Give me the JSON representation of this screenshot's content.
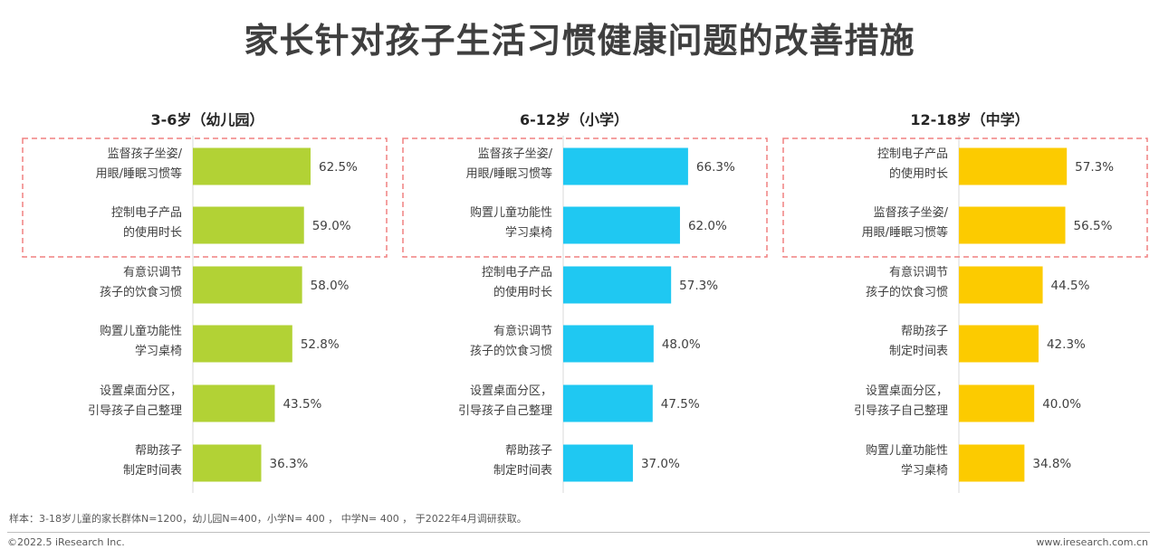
{
  "title": "家长针对孩子生活习惯健康问题的改善措施",
  "note": "样本：3-18岁儿童的家长群体N=1200，幼儿园N=400，小学N= 400 ， 中学N= 400 ， 于2022年4月调研获取。",
  "copyright": "©2022.5 iResearch Inc.",
  "website": "www.iresearch.com.cn",
  "colors": {
    "kindergarten": "#b2d235",
    "primary": "#1fc8f2",
    "middle": "#fccb00",
    "highlight_box": "#f08080",
    "axis": "#d9d9d9"
  },
  "chart_data": [
    {
      "type": "bar",
      "orientation": "horizontal",
      "title": "3-6岁（幼儿园）",
      "categories": [
        "监督孩子坐姿/\n用眼/睡眠习惯等",
        "控制电子产品\n的使用时长",
        "有意识调节\n孩子的饮食习惯",
        "购置儿童功能性\n学习桌椅",
        "设置桌面分区，\n引导孩子自己整理",
        "帮助孩子\n制定时间表"
      ],
      "values": [
        62.5,
        59.0,
        58.0,
        52.8,
        43.5,
        36.3
      ],
      "value_labels": [
        "62.5%",
        "59.0%",
        "58.0%",
        "52.8%",
        "43.5%",
        "36.3%"
      ],
      "unit": "%",
      "highlighted_top": 2
    },
    {
      "type": "bar",
      "orientation": "horizontal",
      "title": "6-12岁（小学）",
      "categories": [
        "监督孩子坐姿/\n用眼/睡眠习惯等",
        "购置儿童功能性\n学习桌椅",
        "控制电子产品\n的使用时长",
        "有意识调节\n孩子的饮食习惯",
        "设置桌面分区，\n引导孩子自己整理",
        "帮助孩子\n制定时间表"
      ],
      "values": [
        66.3,
        62.0,
        57.3,
        48.0,
        47.5,
        37.0
      ],
      "value_labels": [
        "66.3%",
        "62.0%",
        "57.3%",
        "48.0%",
        "47.5%",
        "37.0%"
      ],
      "unit": "%",
      "highlighted_top": 2
    },
    {
      "type": "bar",
      "orientation": "horizontal",
      "title": "12-18岁（中学）",
      "categories": [
        "控制电子产品\n的使用时长",
        "监督孩子坐姿/\n用眼/睡眠习惯等",
        "有意识调节\n孩子的饮食习惯",
        "帮助孩子\n制定时间表",
        "设置桌面分区，\n引导孩子自己整理",
        "购置儿童功能性\n学习桌椅"
      ],
      "values": [
        57.3,
        56.5,
        44.5,
        42.3,
        40.0,
        34.8
      ],
      "value_labels": [
        "57.3%",
        "56.5%",
        "44.5%",
        "42.3%",
        "40.0%",
        "34.8%"
      ],
      "unit": "%",
      "highlighted_top": 2
    }
  ]
}
